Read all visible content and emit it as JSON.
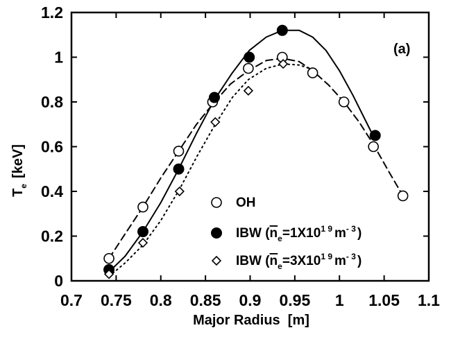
{
  "chart_data": {
    "type": "scatter",
    "xlabel": "Major Radius  [m]",
    "ylabel": "T",
    "ylabel_sub": "e",
    "ylabel_unit": "[keV]",
    "panel_label": "(a)",
    "xlim": [
      0.7,
      1.1
    ],
    "ylim": [
      0,
      1.2
    ],
    "x_ticks": [
      0.7,
      0.75,
      0.8,
      0.85,
      0.9,
      0.95,
      1.0,
      1.05,
      1.1
    ],
    "x_tick_labels": [
      "0.7",
      "0.75",
      "0.8",
      "0.85",
      "0.9",
      "0.95",
      "1",
      "1.05",
      "1.1"
    ],
    "y_ticks": [
      0,
      0.2,
      0.4,
      0.6,
      0.8,
      1.0,
      1.2
    ],
    "y_tick_labels": [
      "0",
      "0.2",
      "0.4",
      "0.6",
      "0.8",
      "1",
      "1.2"
    ],
    "grid": false,
    "legend_position": "bottom-right",
    "series": [
      {
        "name": "OH",
        "marker": "open-circle",
        "line_style": "dashed",
        "x": [
          0.742,
          0.78,
          0.82,
          0.858,
          0.898,
          0.936,
          0.97,
          1.005,
          1.038,
          1.071
        ],
        "y": [
          0.1,
          0.33,
          0.58,
          0.8,
          0.95,
          1.0,
          0.93,
          0.8,
          0.6,
          0.38
        ],
        "fit_x": [
          0.742,
          0.76,
          0.78,
          0.8,
          0.82,
          0.84,
          0.858,
          0.878,
          0.898,
          0.918,
          0.936,
          0.955,
          0.97,
          0.988,
          1.005,
          1.022,
          1.038,
          1.055,
          1.071
        ],
        "fit_y": [
          0.1,
          0.21,
          0.33,
          0.46,
          0.58,
          0.7,
          0.79,
          0.88,
          0.94,
          0.985,
          0.995,
          0.98,
          0.94,
          0.875,
          0.8,
          0.71,
          0.61,
          0.49,
          0.38
        ]
      },
      {
        "name": "IBW (n_e=1X10^19 m^-3)",
        "legend_text": [
          "IBW (",
          "n",
          "e",
          "=1X10",
          "1 9",
          "m",
          "- 3",
          ")"
        ],
        "marker": "filled-circle",
        "line_style": "solid",
        "x": [
          0.742,
          0.78,
          0.82,
          0.86,
          0.899,
          0.936,
          1.04
        ],
        "y": [
          0.05,
          0.22,
          0.5,
          0.82,
          1.0,
          1.12,
          0.65
        ],
        "fit_x": [
          0.742,
          0.76,
          0.78,
          0.8,
          0.82,
          0.84,
          0.86,
          0.88,
          0.899,
          0.918,
          0.936,
          0.955,
          0.97,
          0.985,
          1.0,
          1.015,
          1.03,
          1.04
        ],
        "fit_y": [
          0.04,
          0.11,
          0.22,
          0.35,
          0.5,
          0.66,
          0.81,
          0.93,
          1.03,
          1.09,
          1.12,
          1.12,
          1.09,
          1.03,
          0.94,
          0.83,
          0.71,
          0.63
        ]
      },
      {
        "name": "IBW (n_e=3X10^19 m^-3)",
        "legend_text": [
          "IBW (",
          "n",
          "e",
          "=3X10",
          "1 9",
          "m",
          "- 3",
          ")"
        ],
        "marker": "open-diamond",
        "line_style": "dotted",
        "x": [
          0.742,
          0.78,
          0.821,
          0.861,
          0.898,
          0.937
        ],
        "y": [
          0.03,
          0.17,
          0.4,
          0.71,
          0.85,
          0.97
        ],
        "fit_x": [
          0.742,
          0.76,
          0.78,
          0.8,
          0.821,
          0.841,
          0.861,
          0.88,
          0.898,
          0.918,
          0.937,
          0.955,
          0.97
        ],
        "fit_y": [
          0.02,
          0.08,
          0.16,
          0.27,
          0.41,
          0.56,
          0.7,
          0.82,
          0.9,
          0.95,
          0.97,
          0.965,
          0.945
        ]
      }
    ]
  }
}
